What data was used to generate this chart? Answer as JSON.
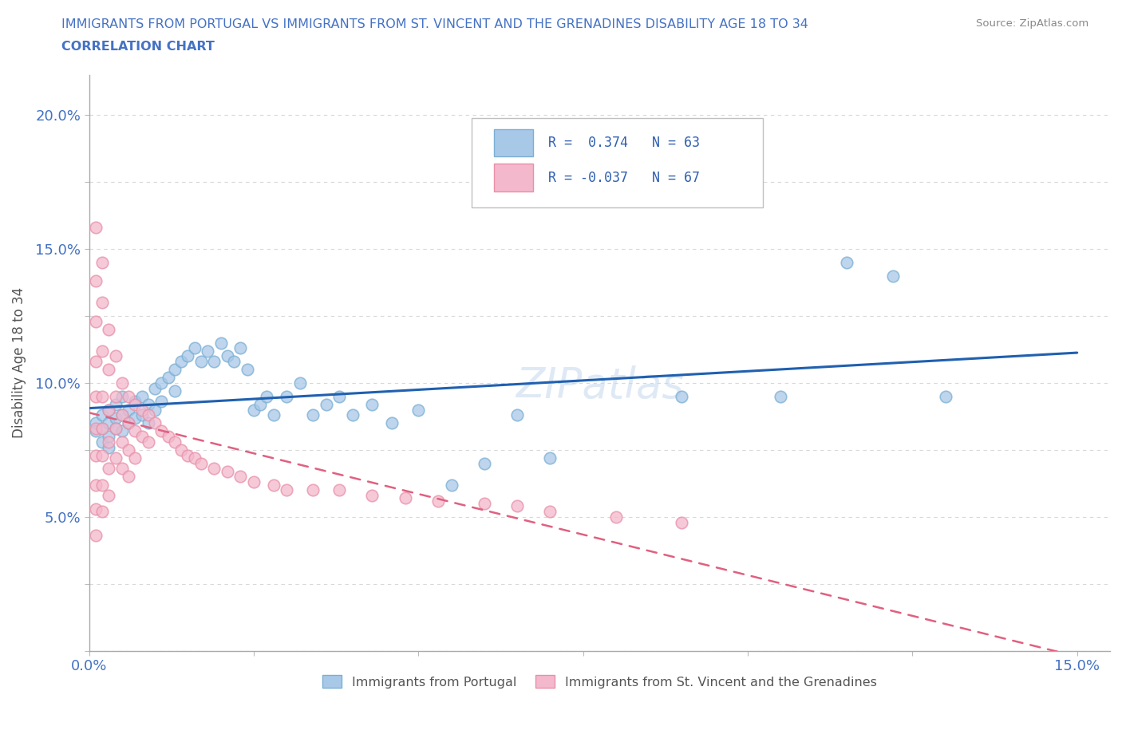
{
  "title_line1": "IMMIGRANTS FROM PORTUGAL VS IMMIGRANTS FROM ST. VINCENT AND THE GRENADINES DISABILITY AGE 18 TO 34",
  "title_line2": "CORRELATION CHART",
  "source": "Source: ZipAtlas.com",
  "ylabel": "Disability Age 18 to 34",
  "xlim": [
    0.0,
    0.155
  ],
  "ylim": [
    0.0,
    0.215
  ],
  "xticks": [
    0.0,
    0.025,
    0.05,
    0.075,
    0.1,
    0.125,
    0.15
  ],
  "yticks": [
    0.0,
    0.025,
    0.05,
    0.075,
    0.1,
    0.125,
    0.15,
    0.175,
    0.2
  ],
  "portugal_color": "#a8c8e8",
  "portugal_edge": "#7aafd4",
  "stv_color": "#f4b8cc",
  "stv_edge": "#e890a8",
  "portugal_R": 0.374,
  "portugal_N": 63,
  "stv_R": -0.037,
  "stv_N": 67,
  "legend_label1": "Immigrants from Portugal",
  "legend_label2": "Immigrants from St. Vincent and the Grenadines",
  "portugal_scatter": [
    [
      0.001,
      0.085
    ],
    [
      0.001,
      0.082
    ],
    [
      0.002,
      0.088
    ],
    [
      0.002,
      0.083
    ],
    [
      0.002,
      0.078
    ],
    [
      0.003,
      0.09
    ],
    [
      0.003,
      0.085
    ],
    [
      0.003,
      0.08
    ],
    [
      0.003,
      0.076
    ],
    [
      0.004,
      0.092
    ],
    [
      0.004,
      0.087
    ],
    [
      0.004,
      0.083
    ],
    [
      0.005,
      0.095
    ],
    [
      0.005,
      0.088
    ],
    [
      0.005,
      0.082
    ],
    [
      0.006,
      0.09
    ],
    [
      0.006,
      0.085
    ],
    [
      0.007,
      0.093
    ],
    [
      0.007,
      0.087
    ],
    [
      0.008,
      0.095
    ],
    [
      0.008,
      0.088
    ],
    [
      0.009,
      0.092
    ],
    [
      0.009,
      0.085
    ],
    [
      0.01,
      0.098
    ],
    [
      0.01,
      0.09
    ],
    [
      0.011,
      0.1
    ],
    [
      0.011,
      0.093
    ],
    [
      0.012,
      0.102
    ],
    [
      0.013,
      0.105
    ],
    [
      0.013,
      0.097
    ],
    [
      0.014,
      0.108
    ],
    [
      0.015,
      0.11
    ],
    [
      0.016,
      0.113
    ],
    [
      0.017,
      0.108
    ],
    [
      0.018,
      0.112
    ],
    [
      0.019,
      0.108
    ],
    [
      0.02,
      0.115
    ],
    [
      0.021,
      0.11
    ],
    [
      0.022,
      0.108
    ],
    [
      0.023,
      0.113
    ],
    [
      0.024,
      0.105
    ],
    [
      0.025,
      0.09
    ],
    [
      0.026,
      0.092
    ],
    [
      0.027,
      0.095
    ],
    [
      0.028,
      0.088
    ],
    [
      0.03,
      0.095
    ],
    [
      0.032,
      0.1
    ],
    [
      0.034,
      0.088
    ],
    [
      0.036,
      0.092
    ],
    [
      0.038,
      0.095
    ],
    [
      0.04,
      0.088
    ],
    [
      0.043,
      0.092
    ],
    [
      0.046,
      0.085
    ],
    [
      0.05,
      0.09
    ],
    [
      0.055,
      0.062
    ],
    [
      0.06,
      0.07
    ],
    [
      0.065,
      0.088
    ],
    [
      0.07,
      0.072
    ],
    [
      0.09,
      0.095
    ],
    [
      0.105,
      0.095
    ],
    [
      0.115,
      0.145
    ],
    [
      0.122,
      0.14
    ],
    [
      0.13,
      0.095
    ]
  ],
  "stv_scatter": [
    [
      0.001,
      0.158
    ],
    [
      0.001,
      0.138
    ],
    [
      0.001,
      0.123
    ],
    [
      0.001,
      0.108
    ],
    [
      0.001,
      0.095
    ],
    [
      0.001,
      0.083
    ],
    [
      0.001,
      0.073
    ],
    [
      0.001,
      0.062
    ],
    [
      0.001,
      0.053
    ],
    [
      0.001,
      0.043
    ],
    [
      0.002,
      0.145
    ],
    [
      0.002,
      0.13
    ],
    [
      0.002,
      0.112
    ],
    [
      0.002,
      0.095
    ],
    [
      0.002,
      0.083
    ],
    [
      0.002,
      0.073
    ],
    [
      0.002,
      0.062
    ],
    [
      0.002,
      0.052
    ],
    [
      0.003,
      0.12
    ],
    [
      0.003,
      0.105
    ],
    [
      0.003,
      0.09
    ],
    [
      0.003,
      0.078
    ],
    [
      0.003,
      0.068
    ],
    [
      0.003,
      0.058
    ],
    [
      0.004,
      0.11
    ],
    [
      0.004,
      0.095
    ],
    [
      0.004,
      0.083
    ],
    [
      0.004,
      0.072
    ],
    [
      0.005,
      0.1
    ],
    [
      0.005,
      0.088
    ],
    [
      0.005,
      0.078
    ],
    [
      0.005,
      0.068
    ],
    [
      0.006,
      0.095
    ],
    [
      0.006,
      0.085
    ],
    [
      0.006,
      0.075
    ],
    [
      0.006,
      0.065
    ],
    [
      0.007,
      0.092
    ],
    [
      0.007,
      0.082
    ],
    [
      0.007,
      0.072
    ],
    [
      0.008,
      0.09
    ],
    [
      0.008,
      0.08
    ],
    [
      0.009,
      0.088
    ],
    [
      0.009,
      0.078
    ],
    [
      0.01,
      0.085
    ],
    [
      0.011,
      0.082
    ],
    [
      0.012,
      0.08
    ],
    [
      0.013,
      0.078
    ],
    [
      0.014,
      0.075
    ],
    [
      0.015,
      0.073
    ],
    [
      0.016,
      0.072
    ],
    [
      0.017,
      0.07
    ],
    [
      0.019,
      0.068
    ],
    [
      0.021,
      0.067
    ],
    [
      0.023,
      0.065
    ],
    [
      0.025,
      0.063
    ],
    [
      0.028,
      0.062
    ],
    [
      0.03,
      0.06
    ],
    [
      0.034,
      0.06
    ],
    [
      0.038,
      0.06
    ],
    [
      0.043,
      0.058
    ],
    [
      0.048,
      0.057
    ],
    [
      0.053,
      0.056
    ],
    [
      0.06,
      0.055
    ],
    [
      0.065,
      0.054
    ],
    [
      0.07,
      0.052
    ],
    [
      0.08,
      0.05
    ],
    [
      0.09,
      0.048
    ]
  ],
  "watermark": "ZIPatlas",
  "background_color": "#ffffff"
}
